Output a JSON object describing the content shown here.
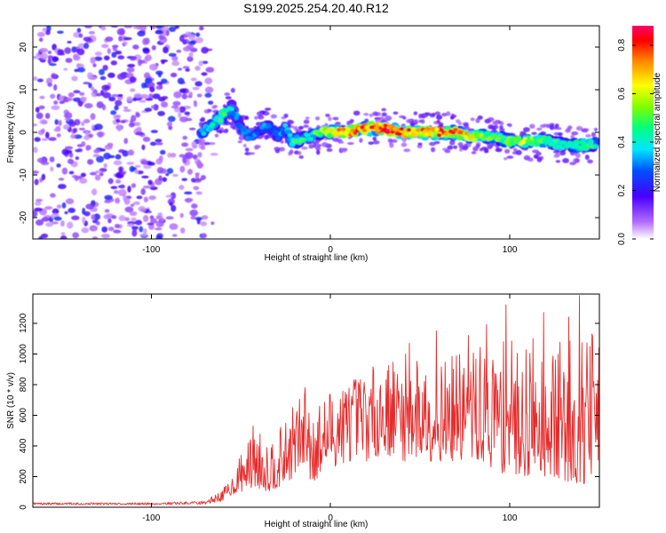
{
  "title": "S199.2025.254.20.40.R12",
  "chart_data": [
    {
      "type": "heatmap",
      "xlabel": "Height of straight line (km)",
      "ylabel": "Frequency (Hz)",
      "xlim": [
        -166,
        150
      ],
      "ylim": [
        -25,
        25
      ],
      "xticks": [
        -100,
        0,
        100
      ],
      "xtick_labels": [
        "-100",
        "0",
        "100"
      ],
      "yticks": [
        -20,
        -10,
        0,
        10,
        20
      ],
      "ytick_labels": [
        "-20",
        "-10",
        "0",
        "10",
        "20"
      ],
      "colorbar": {
        "label": "Normalized spectral amplitude",
        "range": [
          0,
          0.88
        ],
        "ticks": [
          0,
          0.2,
          0.4,
          0.6,
          0.8
        ],
        "tick_labels": [
          "0.0",
          "0.2",
          "0.4",
          "0.6",
          "0.8"
        ],
        "colormap": "rainbow"
      },
      "ridge": {
        "x": [
          -72,
          -65,
          -60,
          -55,
          -50,
          -45,
          -40,
          -35,
          -30,
          -25,
          -22,
          -18,
          -12,
          -5,
          0,
          10,
          20,
          30,
          40,
          50,
          60,
          70,
          80,
          90,
          100,
          110,
          120,
          130,
          140,
          148
        ],
        "y": [
          0,
          2,
          4,
          6,
          1,
          -1,
          0,
          2,
          -1,
          1,
          -2,
          -2,
          -1,
          0,
          0,
          0,
          1,
          1,
          0,
          0,
          0,
          0,
          -1,
          -1,
          -2,
          -2,
          -2,
          -3,
          -3,
          -3
        ],
        "amplitude": [
          0.35,
          0.45,
          0.5,
          0.4,
          0.3,
          0.35,
          0.3,
          0.35,
          0.3,
          0.35,
          0.45,
          0.5,
          0.4,
          0.6,
          0.65,
          0.75,
          0.8,
          0.85,
          0.8,
          0.75,
          0.8,
          0.75,
          0.65,
          0.5,
          0.55,
          0.6,
          0.5,
          0.45,
          0.5,
          0.45
        ]
      },
      "noise_region": {
        "x_range": [
          -166,
          -70
        ],
        "amplitude_range": [
          0.05,
          0.25
        ]
      }
    },
    {
      "type": "line",
      "xlabel": "Height of straight line (km)",
      "ylabel": "SNR (10 * v/v)",
      "xlim": [
        -166,
        150
      ],
      "ylim": [
        0,
        1390
      ],
      "xticks": [
        -100,
        0,
        100
      ],
      "xtick_labels": [
        "-100",
        "0",
        "100"
      ],
      "yticks": [
        0,
        200,
        400,
        600,
        800,
        1000,
        1200
      ],
      "ytick_labels": [
        "0",
        "200",
        "400",
        "600",
        "800",
        "1000",
        "1200"
      ],
      "color": "#e62b2b",
      "envelope": {
        "x": [
          -166,
          -100,
          -70,
          -60,
          -55,
          -50,
          -45,
          -40,
          -35,
          -30,
          -25,
          -20,
          -15,
          -10,
          -5,
          0,
          10,
          20,
          30,
          40,
          50,
          60,
          70,
          80,
          90,
          100,
          110,
          120,
          130,
          140,
          150
        ],
        "low": [
          15,
          15,
          20,
          40,
          80,
          100,
          120,
          120,
          100,
          120,
          150,
          200,
          250,
          150,
          200,
          250,
          300,
          300,
          350,
          300,
          300,
          300,
          300,
          300,
          250,
          200,
          200,
          200,
          150,
          150,
          150
        ],
        "high": [
          30,
          30,
          40,
          120,
          200,
          350,
          450,
          500,
          450,
          500,
          550,
          700,
          750,
          700,
          700,
          800,
          850,
          900,
          950,
          1000,
          1000,
          950,
          1000,
          1050,
          1050,
          1100,
          1050,
          1050,
          1100,
          1150,
          1150
        ]
      },
      "peaks": [
        {
          "x": 139,
          "y": 1380
        },
        {
          "x": 98,
          "y": 1320
        },
        {
          "x": 119,
          "y": 1270
        },
        {
          "x": 133,
          "y": 1240
        },
        {
          "x": 87,
          "y": 1190
        },
        {
          "x": 59,
          "y": 1150
        },
        {
          "x": 146,
          "y": 1130
        },
        {
          "x": 77,
          "y": 1120
        },
        {
          "x": 113,
          "y": 1100
        },
        {
          "x": 44,
          "y": 1070
        },
        {
          "x": -14,
          "y": 780
        },
        {
          "x": -43,
          "y": 530
        }
      ]
    }
  ]
}
